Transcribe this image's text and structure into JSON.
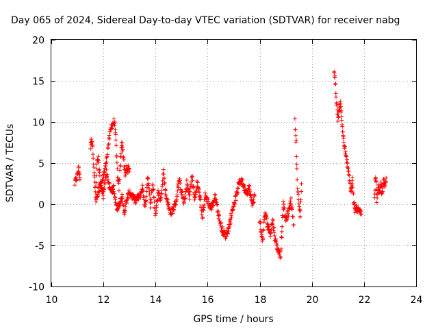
{
  "chart_data": {
    "type": "scatter",
    "title": "Day 065 of 2024, Sidereal Day-to-day VTEC variation (SDTVAR) for receiver nabg",
    "xlabel": "GPS time / hours",
    "ylabel": "SDTVAR / TECUs",
    "xlim": [
      10,
      24
    ],
    "ylim": [
      -10,
      20
    ],
    "xticks": [
      10,
      12,
      14,
      16,
      18,
      20,
      22,
      24
    ],
    "yticks": [
      -10,
      -5,
      0,
      5,
      10,
      15,
      20
    ],
    "grid": true,
    "marker": "+",
    "series": [
      {
        "name": "SDTVAR",
        "color": "#ff0000",
        "segments": [
          {
            "x": [
              10.9,
              11.0,
              11.05,
              11.1
            ],
            "y": [
              2.5,
              3.5,
              4.5,
              3.0
            ]
          },
          {
            "x": [
              11.5,
              11.55,
              11.6,
              11.65,
              11.7,
              11.75,
              11.8,
              11.9,
              12.0,
              12.1,
              12.2,
              12.3,
              12.4,
              12.45,
              12.5,
              12.55,
              12.6,
              12.65,
              12.7,
              12.75,
              12.8,
              12.85,
              12.9,
              13.0
            ],
            "y": [
              7.0,
              8.0,
              6.5,
              3.5,
              1.0,
              5.0,
              5.5,
              2.0,
              3.5,
              5.0,
              7.5,
              9.5,
              10.0,
              9.5,
              6.0,
              3.0,
              2.0,
              5.0,
              7.5,
              6.5,
              4.5,
              3.5,
              4.5,
              4.0
            ]
          },
          {
            "x": [
              11.7,
              11.8,
              11.9,
              12.0,
              12.1,
              12.2,
              12.3,
              12.4,
              12.5,
              12.6,
              12.7,
              12.8,
              12.9,
              13.0,
              13.2,
              13.4,
              13.5,
              13.6,
              13.7,
              13.8,
              13.9,
              14.0,
              14.1,
              14.2,
              14.3,
              14.4,
              14.5
            ],
            "y": [
              0.5,
              1.5,
              2.5,
              1.0,
              4.0,
              2.5,
              1.5,
              2.0,
              -0.5,
              0.0,
              1.0,
              -1.0,
              0.5,
              1.5,
              0.5,
              1.0,
              2.0,
              -0.5,
              3.5,
              0.0,
              2.5,
              -1.5,
              1.5,
              0.5,
              4.0,
              1.0,
              0.0
            ]
          },
          {
            "x": [
              14.5,
              14.6,
              14.7,
              14.8,
              14.9,
              15.0,
              15.1,
              15.2,
              15.3,
              15.4,
              15.5,
              15.6,
              15.7,
              15.8,
              15.9,
              16.0,
              16.1,
              16.2,
              16.3,
              16.4,
              16.5,
              16.6,
              16.7,
              16.8,
              16.9,
              17.0,
              17.1,
              17.2,
              17.3,
              17.4,
              17.5,
              17.6,
              17.7,
              17.8
            ],
            "y": [
              -0.5,
              -1.0,
              -0.5,
              0.5,
              3.0,
              1.5,
              0.0,
              2.5,
              1.0,
              3.5,
              0.5,
              2.5,
              1.0,
              -1.5,
              1.0,
              0.5,
              -0.5,
              0.0,
              1.0,
              -1.0,
              -2.5,
              -3.5,
              -3.8,
              -3.0,
              -1.5,
              0.0,
              1.0,
              2.5,
              3.0,
              2.0,
              1.5,
              2.0,
              0.0,
              1.0
            ]
          },
          {
            "x": [
              18.0,
              18.1,
              18.2,
              18.3,
              18.4,
              18.5,
              18.6,
              18.7,
              18.8,
              18.85,
              18.9,
              19.0,
              19.1,
              19.2,
              19.3
            ],
            "y": [
              -2.0,
              -4.5,
              -1.0,
              -2.5,
              -3.5,
              -2.0,
              -4.5,
              -5.5,
              -6.3,
              -3.0,
              0.0,
              -2.0,
              -1.0,
              0.5,
              -2.5
            ]
          },
          {
            "x": [
              19.35,
              19.4,
              19.42,
              19.45,
              19.5,
              19.55,
              19.6
            ],
            "y": [
              10.0,
              7.5,
              5.0,
              2.0,
              0.0,
              -1.5,
              2.5
            ]
          },
          {
            "x": [
              20.85,
              20.9,
              20.95,
              21.0,
              21.05,
              21.1,
              21.15,
              21.2,
              21.25,
              21.3,
              21.4,
              21.5,
              21.55,
              21.6,
              21.65,
              21.7,
              21.8,
              21.9
            ],
            "y": [
              16.0,
              15.0,
              12.0,
              10.5,
              11.5,
              12.5,
              10.0,
              8.5,
              7.0,
              6.0,
              4.0,
              1.5,
              3.0,
              0.5,
              -1.0,
              -0.5,
              -0.5,
              -1.2
            ]
          },
          {
            "x": [
              22.4,
              22.45,
              22.5,
              22.55,
              22.6,
              22.65,
              22.7,
              22.75,
              22.8,
              22.85
            ],
            "y": [
              1.0,
              3.5,
              0.5,
              2.0,
              1.5,
              2.5,
              1.0,
              3.0,
              2.0,
              3.2
            ]
          }
        ]
      }
    ]
  }
}
